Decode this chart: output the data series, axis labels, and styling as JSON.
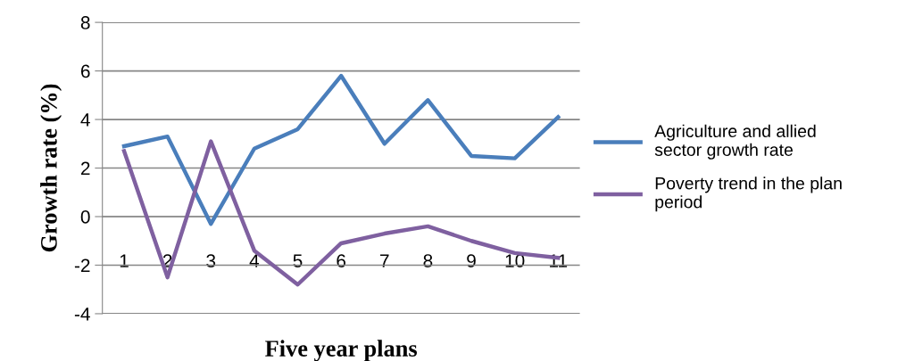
{
  "chart_data": {
    "type": "line",
    "xlabel": "Five year plans",
    "ylabel": "Growth rate (%)",
    "categories": [
      "1",
      "2",
      "3",
      "4",
      "5",
      "6",
      "7",
      "8",
      "9",
      "10",
      "11"
    ],
    "series": [
      {
        "name": "Agriculture and allied sector growth rate",
        "color": "#4a7ebb",
        "values": [
          2.9,
          3.3,
          -0.3,
          2.8,
          3.6,
          5.8,
          3.0,
          4.8,
          2.5,
          2.4,
          4.1
        ]
      },
      {
        "name": "Poverty trend in the plan period",
        "color": "#7f60a0",
        "values": [
          2.7,
          -2.5,
          3.1,
          -1.4,
          -2.8,
          -1.1,
          -0.7,
          -0.4,
          -1.0,
          -1.5,
          -1.7
        ]
      }
    ],
    "ylim": [
      -4,
      8
    ],
    "yticks": [
      -4,
      -2,
      0,
      2,
      4,
      6,
      8
    ],
    "grid": "y",
    "legend": "right",
    "marker": "none",
    "line_style": "solid"
  }
}
